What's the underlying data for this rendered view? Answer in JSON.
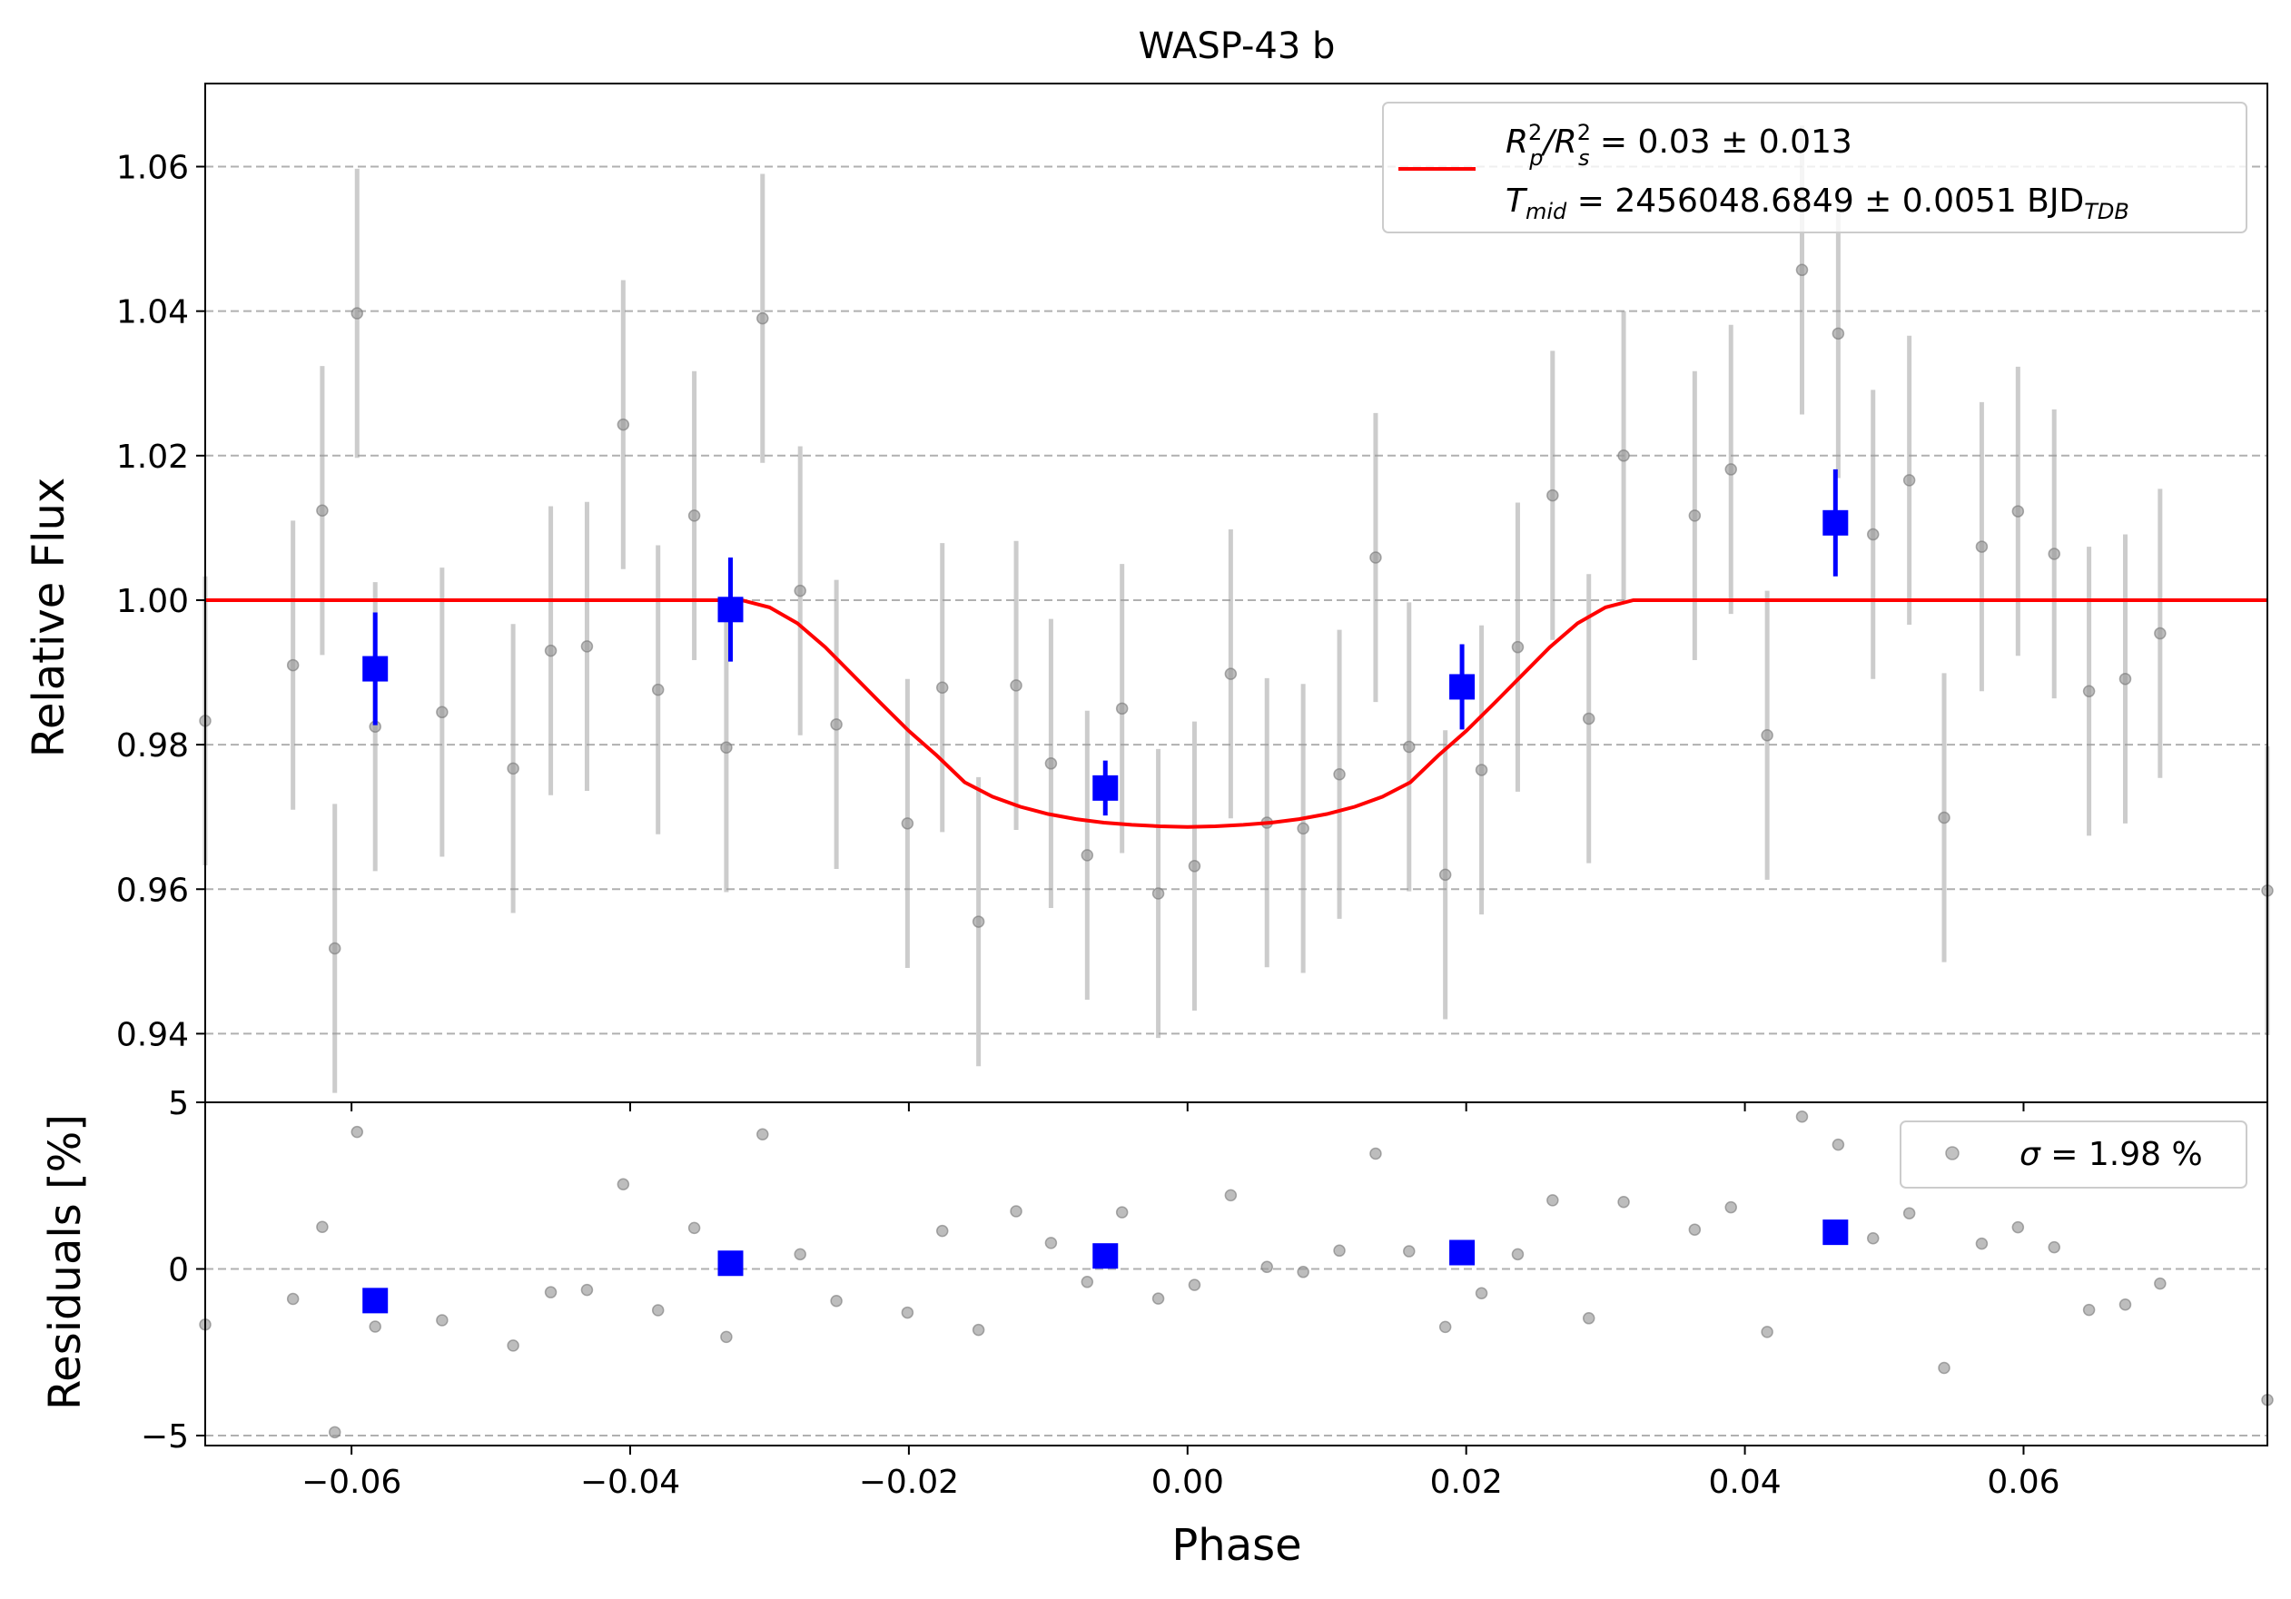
{
  "chart_data": [
    {
      "panel": "main",
      "type": "scatter",
      "title": "WASP-43 b",
      "xlabel": "",
      "ylabel": "Relative Flux",
      "xlim": [
        -0.0705,
        0.0775
      ],
      "ylim": [
        0.9305,
        1.0715
      ],
      "yticks": [
        "0.94",
        "0.96",
        "0.98",
        "1.00",
        "1.02",
        "1.04",
        "1.06"
      ],
      "grid": "horizontal dashed",
      "legend_position": "top-right",
      "legend": {
        "line1": {
          "r": "R",
          "sup1": "2",
          "subp": "p",
          "slash": "/R",
          "sup2": "2",
          "subs": "s",
          "rest": " = 0.03 ± 0.013"
        },
        "line2": {
          "t": "T",
          "sub": "mid",
          "rest": " = 2456048.6849 ± 0.0051 BJD",
          "sub2": "TDB"
        }
      },
      "colors": {
        "model": "#ff0000",
        "binned": "#0000ff",
        "raw": "#999999",
        "grid": "#b0b0b0"
      },
      "error": 0.02,
      "raw": {
        "x": [
          -0.0705,
          -0.0642,
          -0.0621,
          -0.0612,
          -0.0596,
          -0.0583,
          -0.0535,
          -0.0484,
          -0.0457,
          -0.0431,
          -0.0405,
          -0.038,
          -0.0354,
          -0.0331,
          -0.0305,
          -0.0278,
          -0.0252,
          -0.0201,
          -0.0176,
          -0.015,
          -0.0123,
          -0.0098,
          -0.0072,
          -0.0047,
          -0.0021,
          0.0005,
          0.0031,
          0.0057,
          0.0083,
          0.0109,
          0.0135,
          0.0159,
          0.0185,
          0.0211,
          0.0237,
          0.0262,
          0.0288,
          0.0313,
          0.0364,
          0.039,
          0.0416,
          0.0441,
          0.0467,
          0.0492,
          0.0518,
          0.0543,
          0.057,
          0.0596,
          0.0622,
          0.0647,
          0.0673,
          0.0698,
          0.0775
        ],
        "y": [
          0.9833,
          0.991,
          1.0124,
          0.9518,
          1.0397,
          0.9825,
          0.9845,
          0.9767,
          0.993,
          0.9936,
          1.0243,
          0.9876,
          1.0117,
          0.9796,
          1.039,
          1.0013,
          0.9828,
          0.9691,
          0.9879,
          0.9555,
          0.9882,
          0.9774,
          0.9647,
          0.985,
          0.9594,
          0.9632,
          0.9898,
          0.9692,
          0.9684,
          0.9759,
          1.0059,
          0.9797,
          0.962,
          0.9765,
          0.9935,
          1.0145,
          0.9836,
          1.02,
          1.0117,
          1.0181,
          0.9813,
          1.0457,
          1.0369,
          1.0091,
          1.0166,
          0.9699,
          1.0074,
          1.0123,
          1.0064,
          0.9874,
          0.9891,
          0.9954,
          0.9598
        ]
      },
      "binned": {
        "x": [
          -0.0583,
          -0.0328,
          -0.0059,
          0.0197,
          0.0465
        ],
        "y": [
          0.9905,
          0.9987,
          0.974,
          0.988,
          1.0107
        ],
        "err": [
          0.0078,
          0.0072,
          0.0038,
          0.0059,
          0.0074
        ]
      },
      "model": {
        "x": [
          -0.0705,
          -0.032,
          -0.03,
          -0.028,
          -0.026,
          -0.024,
          -0.022,
          -0.02,
          -0.018,
          -0.016,
          -0.014,
          -0.012,
          -0.01,
          -0.008,
          -0.006,
          -0.004,
          -0.002,
          0.0,
          0.002,
          0.004,
          0.006,
          0.008,
          0.01,
          0.012,
          0.014,
          0.016,
          0.018,
          0.02,
          0.022,
          0.024,
          0.026,
          0.028,
          0.03,
          0.032,
          0.0775
        ],
        "y": [
          1.0,
          1.0,
          0.999,
          0.9968,
          0.9935,
          0.9896,
          0.9857,
          0.9819,
          0.9785,
          0.9748,
          0.9728,
          0.9714,
          0.9704,
          0.9697,
          0.9692,
          0.9689,
          0.9687,
          0.9686,
          0.9687,
          0.9689,
          0.9692,
          0.9697,
          0.9704,
          0.9714,
          0.9728,
          0.9748,
          0.9785,
          0.9819,
          0.9857,
          0.9896,
          0.9935,
          0.9968,
          0.999,
          1.0,
          1.0
        ]
      }
    },
    {
      "panel": "residuals",
      "type": "scatter",
      "xlabel": "Phase",
      "ylabel": "Residuals [%]",
      "xlim": [
        -0.0705,
        0.0775
      ],
      "ylim": [
        -5.3,
        5.0
      ],
      "xticks": [
        "−0.06",
        "−0.04",
        "−0.02",
        "0.00",
        "0.02",
        "0.04",
        "0.06"
      ],
      "yticks": [
        "−5",
        "0",
        "5"
      ],
      "legend_position": "top-right",
      "legend": {
        "sigma": "σ",
        "rest": " = 1.98 %"
      },
      "raw": {
        "x": [
          -0.0705,
          -0.0642,
          -0.0621,
          -0.0612,
          -0.0596,
          -0.0583,
          -0.0535,
          -0.0484,
          -0.0457,
          -0.0431,
          -0.0405,
          -0.038,
          -0.0354,
          -0.0331,
          -0.0305,
          -0.0278,
          -0.0252,
          -0.0201,
          -0.0176,
          -0.015,
          -0.0123,
          -0.0098,
          -0.0072,
          -0.0047,
          -0.0021,
          0.0005,
          0.0031,
          0.0057,
          0.0083,
          0.0109,
          0.0135,
          0.0159,
          0.0185,
          0.0211,
          0.0237,
          0.0262,
          0.0288,
          0.0313,
          0.0364,
          0.039,
          0.0416,
          0.0441,
          0.0467,
          0.0492,
          0.0518,
          0.0543,
          0.057,
          0.0596,
          0.0622,
          0.0647,
          0.0673,
          0.0698,
          0.0775
        ],
        "y": [
          -1.67,
          -0.9,
          1.26,
          -4.9,
          4.11,
          -1.73,
          -1.54,
          -2.3,
          -0.7,
          -0.63,
          2.54,
          -1.24,
          1.23,
          -2.04,
          4.04,
          0.44,
          -0.96,
          -1.31,
          1.14,
          -1.83,
          1.73,
          0.78,
          -0.39,
          1.7,
          -0.89,
          -0.48,
          2.21,
          0.06,
          -0.09,
          0.55,
          3.46,
          0.53,
          -1.74,
          -0.73,
          0.44,
          2.06,
          -1.48,
          2.01,
          1.18,
          1.85,
          -1.89,
          4.57,
          3.73,
          0.92,
          1.67,
          -2.97,
          0.76,
          1.25,
          0.65,
          -1.23,
          -1.07,
          -0.44,
          -3.93
        ]
      },
      "binned": {
        "x": [
          -0.0583,
          -0.0328,
          -0.0059,
          0.0197,
          0.0465
        ],
        "y": [
          -0.95,
          0.17,
          0.39,
          0.49,
          1.1
        ]
      }
    }
  ]
}
